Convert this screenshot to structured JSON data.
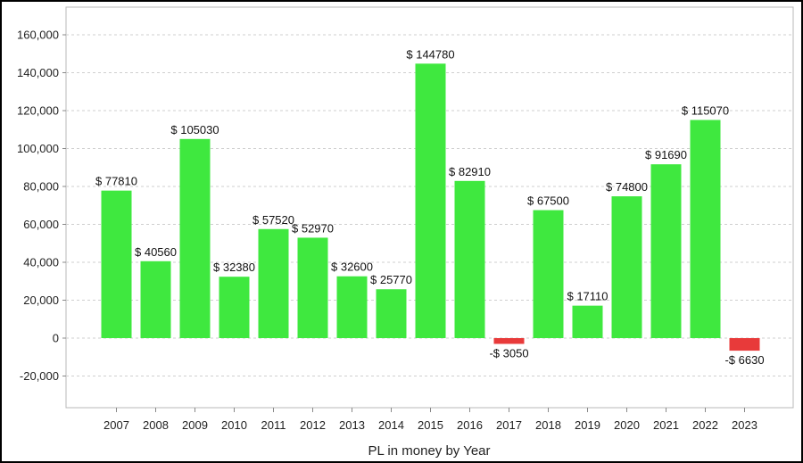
{
  "chart_data": {
    "type": "bar",
    "title": "",
    "xlabel": "PL in money by Year",
    "ylabel": "",
    "ylim": [
      -35000,
      170000
    ],
    "grid": true,
    "y_ticks": [
      -20000,
      0,
      20000,
      40000,
      60000,
      80000,
      100000,
      120000,
      140000,
      160000
    ],
    "y_tick_labels": [
      "-20,000",
      "0",
      "20,000",
      "40,000",
      "60,000",
      "80,000",
      "100,000",
      "120,000",
      "140,000",
      "160,000"
    ],
    "categories": [
      "2007",
      "2008",
      "2009",
      "2010",
      "2011",
      "2012",
      "2013",
      "2014",
      "2015",
      "2016",
      "2017",
      "2018",
      "2019",
      "2020",
      "2021",
      "2022",
      "2023"
    ],
    "values": [
      77810,
      40560,
      105030,
      32380,
      57520,
      52970,
      32600,
      25770,
      144780,
      82910,
      -3050,
      67500,
      17110,
      74800,
      91690,
      115070,
      -6630
    ],
    "data_labels": [
      "$ 77810",
      "$ 40560",
      "$ 105030",
      "$ 32380",
      "$ 57520",
      "$ 52970",
      "$ 32600",
      "$ 25770",
      "$ 144780",
      "$ 82910",
      "-$ 3050",
      "$ 67500",
      "$ 17110",
      "$ 74800",
      "$ 91690",
      "$ 115070",
      "-$ 6630"
    ],
    "colors": {
      "positive": "#3fe83f",
      "negative": "#e83a3a"
    }
  }
}
